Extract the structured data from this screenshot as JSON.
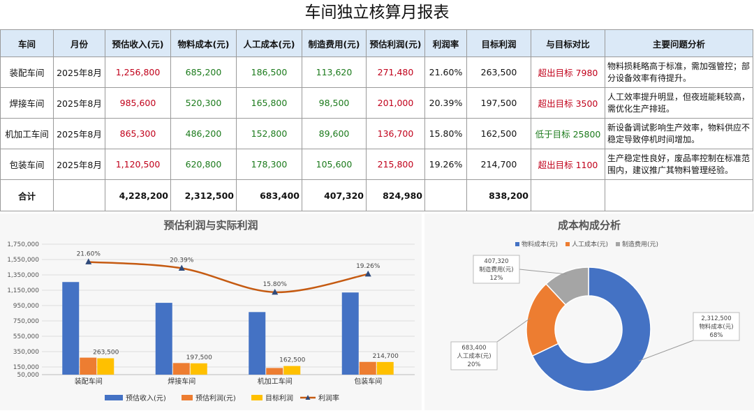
{
  "report": {
    "title": "车间独立核算月报表",
    "headers": [
      "车间",
      "月份",
      "预估收入(元)",
      "物料成本(元)",
      "人工成本(元)",
      "制造费用(元)",
      "预估利润(元)",
      "利润率",
      "目标利润",
      "与目标对比",
      "主要问题分析"
    ],
    "rows": [
      {
        "workshop": "装配车间",
        "month": "2025年8月",
        "revenue": "1,256,800",
        "material": "685,200",
        "labor": "186,500",
        "overhead": "113,620",
        "profit": "271,480",
        "margin": "21.60%",
        "target": "263,500",
        "compare": "超出目标 7980",
        "analysis": "物料损耗略高于标准，需加强管控；部分设备效率有待提升。"
      },
      {
        "workshop": "焊接车间",
        "month": "2025年8月",
        "revenue": "985,600",
        "material": "520,300",
        "labor": "165,800",
        "overhead": "98,500",
        "profit": "201,000",
        "margin": "20.39%",
        "target": "197,500",
        "compare": "超出目标 3500",
        "analysis": "人工效率提升明显，但夜班能耗较高，需优化生产排班。"
      },
      {
        "workshop": "机加工车间",
        "month": "2025年8月",
        "revenue": "865,300",
        "material": "486,200",
        "labor": "152,800",
        "overhead": "89,600",
        "profit": "136,700",
        "margin": "15.80%",
        "target": "162,500",
        "compare": "低于目标 25800",
        "analysis": "新设备调试影响生产效率，物料供应不稳定导致停机时间增加。"
      },
      {
        "workshop": "包装车间",
        "month": "2025年8月",
        "revenue": "1,120,500",
        "material": "620,800",
        "labor": "178,300",
        "overhead": "105,600",
        "profit": "215,800",
        "margin": "19.26%",
        "target": "214,700",
        "compare": "超出目标 1100",
        "analysis": "生产稳定性良好，废品率控制在标准范围内，建议推广其物料管理经验。"
      }
    ],
    "total": {
      "label": "合计",
      "revenue": "4,228,200",
      "material": "2,312,500",
      "labor": "683,400",
      "overhead": "407,320",
      "profit": "824,980",
      "target": "838,200"
    }
  },
  "colors": {
    "header_bg": "#dbe9f7",
    "red_text": "#c0001a",
    "green_text": "#1b7a1b",
    "bar_revenue": "#4472c4",
    "bar_profit": "#ed7d31",
    "bar_target": "#ffc000",
    "line_margin": "#c55a11",
    "donut_material": "#4472c4",
    "donut_labor": "#ed7d31",
    "donut_overhead": "#a5a5a5"
  },
  "chart_data": [
    {
      "type": "bar",
      "title": "预估利润与实际利润",
      "categories": [
        "装配车间",
        "焊接车间",
        "机加工车间",
        "包装车间"
      ],
      "series": [
        {
          "name": "预估收入(元)",
          "values": [
            1256800,
            985600,
            865300,
            1120500
          ]
        },
        {
          "name": "预估利润(元)",
          "values": [
            271480,
            201000,
            136700,
            215800
          ]
        },
        {
          "name": "目标利润",
          "values": [
            263500,
            197500,
            162500,
            214700
          ]
        },
        {
          "name": "利润率",
          "kind": "line",
          "values": [
            21.6,
            20.39,
            15.8,
            19.26
          ]
        }
      ],
      "data_labels": {
        "target": [
          "263,500",
          "197,500",
          "162,500",
          "214,700"
        ],
        "margin": [
          "21.60%",
          "20.39%",
          "15.80%",
          "19.26%"
        ]
      },
      "yticks": [
        "50,000",
        "150,000",
        "350,000",
        "550,000",
        "750,000",
        "950,000",
        "1,150,000",
        "1,350,000",
        "1,550,000",
        "1,750,000"
      ],
      "ytick_values": [
        50000,
        150000,
        350000,
        550000,
        750000,
        950000,
        1150000,
        1350000,
        1550000,
        1750000
      ],
      "ylim": [
        50000,
        1750000
      ],
      "margin_range": [
        0,
        25
      ],
      "legend_position": "bottom"
    },
    {
      "type": "pie",
      "title": "成本构成分析",
      "labels": [
        "物料成本(元)",
        "人工成本(元)",
        "制造费用(元)"
      ],
      "values": [
        2312500,
        683400,
        407320
      ],
      "value_labels": [
        "2,312,500",
        "683,400",
        "407,320"
      ],
      "percent_labels": [
        "68%",
        "20%",
        "12%"
      ],
      "legend_position": "top"
    }
  ]
}
